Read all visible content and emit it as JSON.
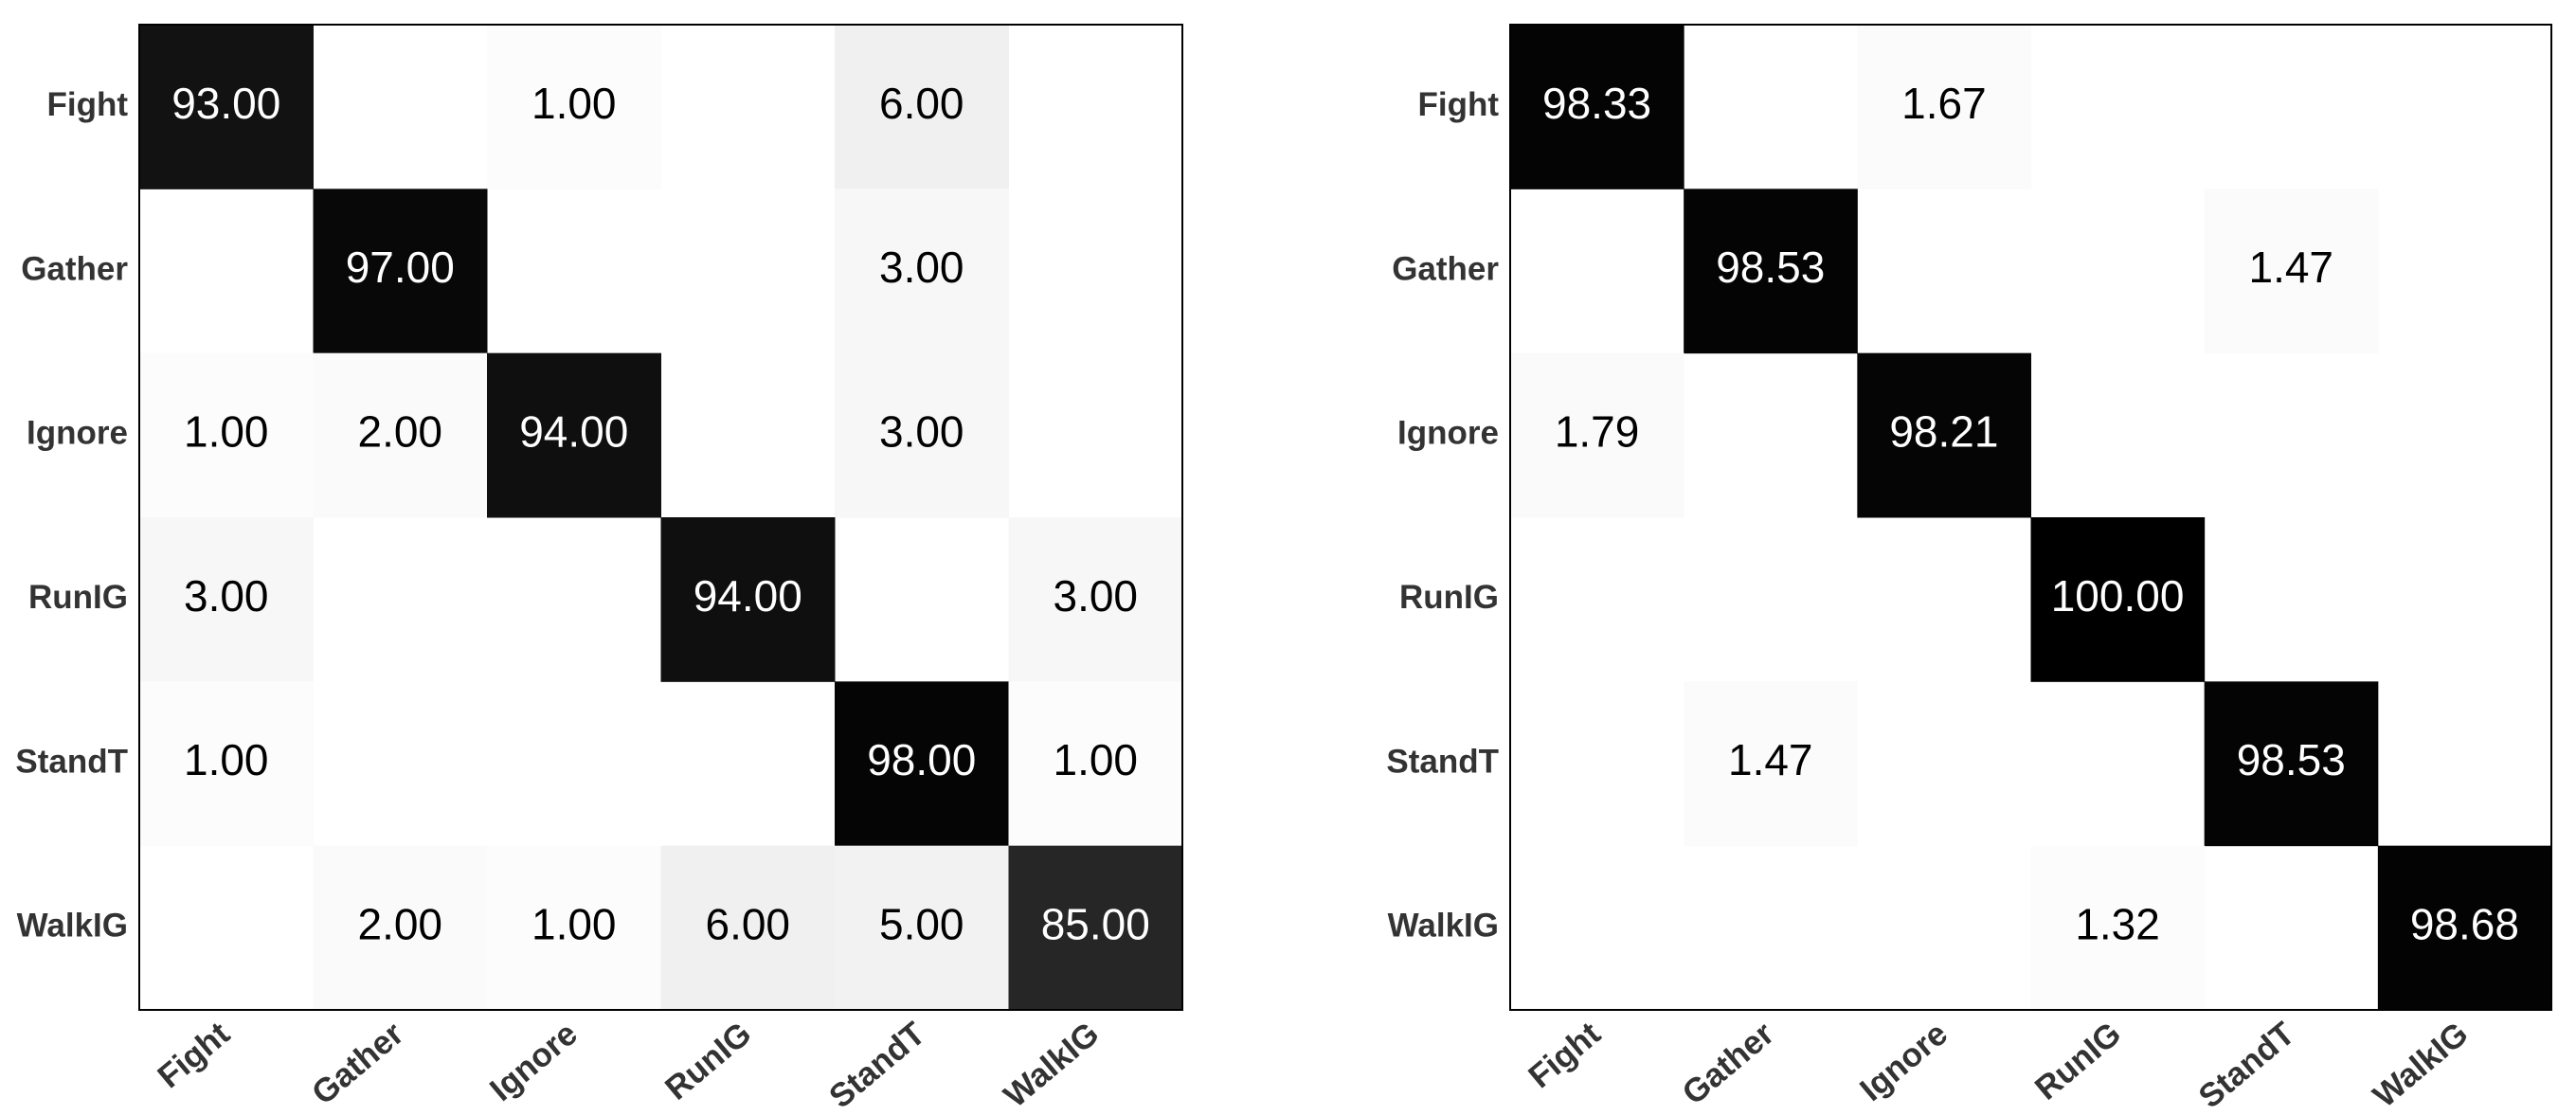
{
  "chart_data": [
    {
      "type": "heatmap",
      "x_categories": [
        "Fight",
        "Gather",
        "Ignore",
        "RunIG",
        "StandT",
        "WalkIG"
      ],
      "y_categories": [
        "Fight",
        "Gather",
        "Ignore",
        "RunIG",
        "StandT",
        "WalkIG"
      ],
      "values": [
        [
          93,
          null,
          1,
          null,
          6,
          null
        ],
        [
          null,
          97,
          null,
          null,
          3,
          null
        ],
        [
          1,
          2,
          94,
          null,
          3,
          null
        ],
        [
          3,
          null,
          null,
          94,
          null,
          3
        ],
        [
          1,
          null,
          null,
          null,
          98,
          1
        ],
        [
          null,
          2,
          1,
          6,
          5,
          85
        ]
      ],
      "value_labels": [
        [
          "93.00",
          null,
          "1.00",
          null,
          "6.00",
          null
        ],
        [
          null,
          "97.00",
          null,
          null,
          "3.00",
          null
        ],
        [
          "1.00",
          "2.00",
          "94.00",
          null,
          "3.00",
          null
        ],
        [
          "3.00",
          null,
          null,
          "94.00",
          null,
          "3.00"
        ],
        [
          "1.00",
          null,
          null,
          null,
          "98.00",
          "1.00"
        ],
        [
          null,
          "2.00",
          "1.00",
          "6.00",
          "5.00",
          "85.00"
        ]
      ]
    },
    {
      "type": "heatmap",
      "x_categories": [
        "Fight",
        "Gather",
        "Ignore",
        "RunIG",
        "StandT",
        "WalkIG"
      ],
      "y_categories": [
        "Fight",
        "Gather",
        "Ignore",
        "RunIG",
        "StandT",
        "WalkIG"
      ],
      "values": [
        [
          98.33,
          null,
          1.67,
          null,
          null,
          null
        ],
        [
          null,
          98.53,
          null,
          null,
          1.47,
          null
        ],
        [
          1.79,
          null,
          98.21,
          null,
          null,
          null
        ],
        [
          null,
          null,
          null,
          100,
          null,
          null
        ],
        [
          null,
          1.47,
          null,
          null,
          98.53,
          null
        ],
        [
          null,
          null,
          null,
          1.32,
          null,
          98.68
        ]
      ],
      "value_labels": [
        [
          "98.33",
          null,
          "1.67",
          null,
          null,
          null
        ],
        [
          null,
          "98.53",
          null,
          null,
          "1.47",
          null
        ],
        [
          "1.79",
          null,
          "98.21",
          null,
          null,
          null
        ],
        [
          null,
          null,
          null,
          "100.00",
          null,
          null
        ],
        [
          null,
          "1.47",
          null,
          null,
          "98.53",
          null
        ],
        [
          null,
          null,
          null,
          "1.32",
          null,
          "98.68"
        ]
      ]
    }
  ]
}
